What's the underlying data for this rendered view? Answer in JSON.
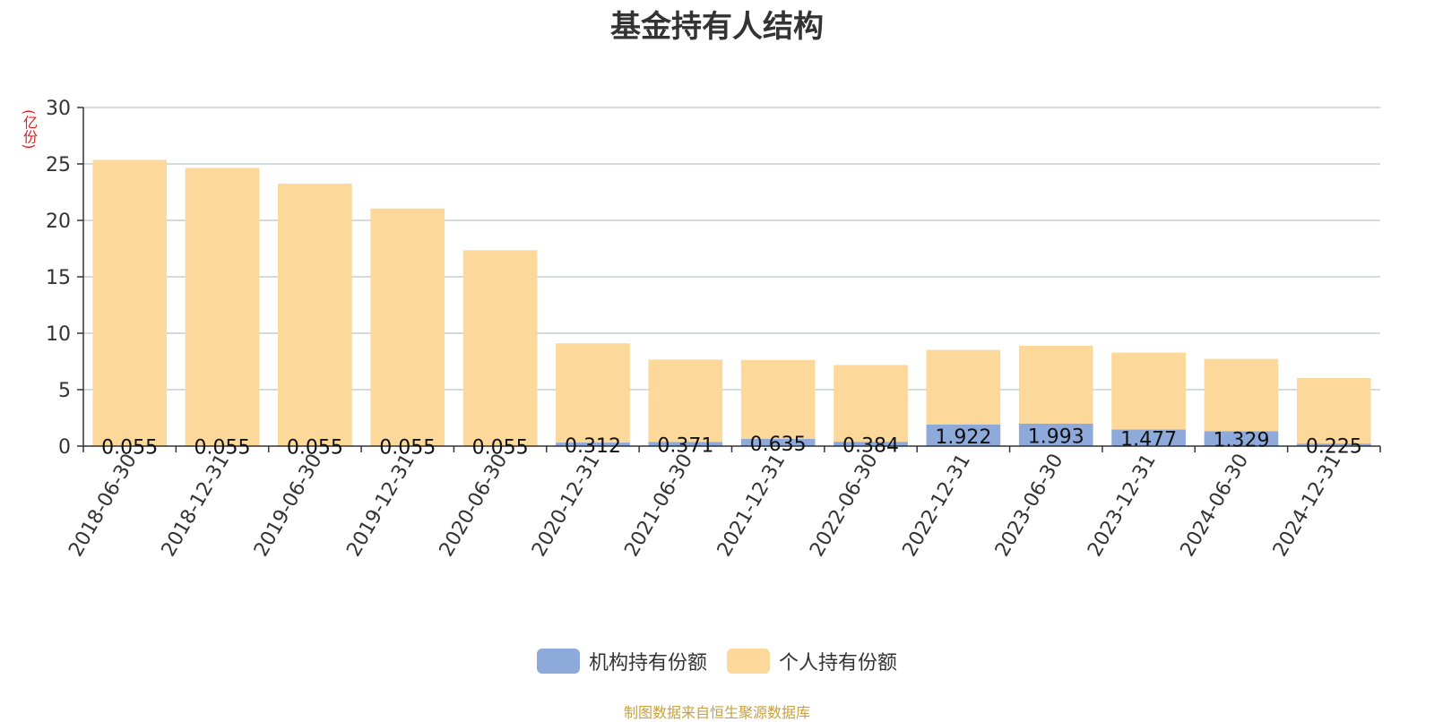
{
  "chart_data": {
    "type": "bar",
    "stacked": true,
    "title": "基金持有人结构",
    "unit": "(亿份)",
    "xlabel": "",
    "ylabel": "",
    "categories": [
      "2018-06-30",
      "2018-12-31",
      "2019-06-30",
      "2019-12-31",
      "2020-06-30",
      "2020-12-31",
      "2021-06-30",
      "2021-12-31",
      "2022-06-30",
      "2022-12-31",
      "2023-06-30",
      "2023-12-31",
      "2024-06-30",
      "2024-12-31"
    ],
    "series": [
      {
        "name": "机构持有份额",
        "color": "#8eaadb",
        "values": [
          0.055,
          0.055,
          0.055,
          0.055,
          0.055,
          0.312,
          0.371,
          0.635,
          0.384,
          1.922,
          1.993,
          1.477,
          1.329,
          0.225
        ],
        "labels": [
          "0.055",
          "0.055",
          "0.055",
          "0.055",
          "0.055",
          "0.312",
          "0.371",
          "0.635",
          "0.384",
          "1.922",
          "1.993",
          "1.477",
          "1.329",
          "0.225"
        ]
      },
      {
        "name": "个人持有份额",
        "color": "#fcd89a",
        "values": [
          25.3,
          24.6,
          23.2,
          21.0,
          17.3,
          8.8,
          7.3,
          7.0,
          6.8,
          6.6,
          6.9,
          6.8,
          6.4,
          5.8
        ]
      }
    ],
    "ylim": [
      0,
      30
    ],
    "yticks": [
      0,
      5,
      10,
      15,
      20,
      25,
      30
    ],
    "grid": true,
    "legend_position": "bottom"
  },
  "footer": "制图数据来自恒生聚源数据库"
}
